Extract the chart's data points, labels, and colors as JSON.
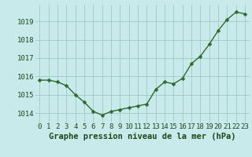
{
  "x": [
    0,
    1,
    2,
    3,
    4,
    5,
    6,
    7,
    8,
    9,
    10,
    11,
    12,
    13,
    14,
    15,
    16,
    17,
    18,
    19,
    20,
    21,
    22,
    23
  ],
  "y": [
    1015.8,
    1015.8,
    1015.7,
    1015.5,
    1015.0,
    1014.6,
    1014.1,
    1013.9,
    1014.1,
    1014.2,
    1014.3,
    1014.4,
    1014.5,
    1015.3,
    1015.7,
    1015.6,
    1015.9,
    1016.7,
    1017.1,
    1017.75,
    1018.5,
    1019.1,
    1019.5,
    1019.4
  ],
  "xlabel": "Graphe pression niveau de la mer (hPa)",
  "xlim": [
    -0.5,
    23.5
  ],
  "ylim": [
    1013.5,
    1019.9
  ],
  "yticks": [
    1014,
    1015,
    1016,
    1017,
    1018,
    1019
  ],
  "xticks": [
    0,
    1,
    2,
    3,
    4,
    5,
    6,
    7,
    8,
    9,
    10,
    11,
    12,
    13,
    14,
    15,
    16,
    17,
    18,
    19,
    20,
    21,
    22,
    23
  ],
  "line_color": "#2d6a2d",
  "marker_color": "#2d6a2d",
  "bg_color": "#c8eaea",
  "grid_color": "#a0c8c8",
  "label_color": "#1a4a1a",
  "xlabel_fontsize": 7.5,
  "tick_fontsize": 6.5,
  "marker_size": 2.5,
  "line_width": 1.0
}
